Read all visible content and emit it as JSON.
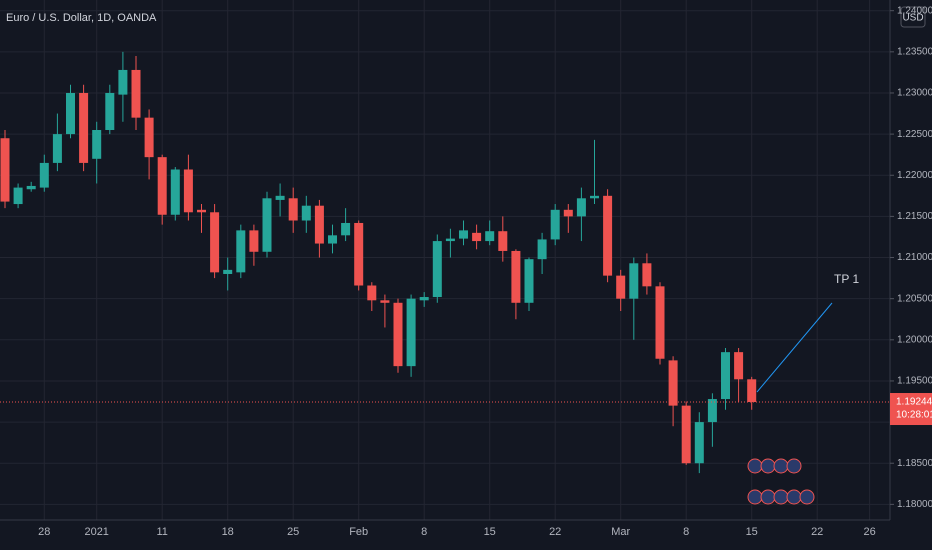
{
  "chart_data": {
    "type": "candlestick",
    "title": "Euro / U.S. Dollar, 1D, OANDA",
    "currency": "USD",
    "categories": [
      null,
      null,
      null,
      "28",
      null,
      null,
      null,
      "2021",
      null,
      null,
      null,
      null,
      "11",
      null,
      null,
      null,
      null,
      "18",
      null,
      null,
      null,
      null,
      "25",
      null,
      null,
      null,
      null,
      "Feb",
      null,
      null,
      null,
      null,
      "8",
      null,
      null,
      null,
      null,
      "15",
      null,
      null,
      null,
      null,
      "22",
      null,
      null,
      null,
      null,
      "Mar",
      null,
      null,
      null,
      null,
      "8",
      null,
      null,
      null,
      null,
      "15",
      null,
      null,
      null,
      null,
      "22",
      null,
      null,
      null,
      "26",
      null
    ],
    "open": [
      1.2245,
      1.2165,
      1.2183,
      1.2185,
      1.2215,
      1.225,
      1.23,
      1.222,
      1.2255,
      1.2298,
      1.2328,
      1.227,
      1.2222,
      1.2152,
      1.2207,
      1.2158,
      1.2155,
      1.208,
      1.2082,
      1.2133,
      1.2107,
      1.217,
      1.2172,
      1.2145,
      1.2163,
      1.2117,
      1.2127,
      1.2142,
      1.2066,
      1.2048,
      1.2045,
      1.1968,
      1.2048,
      1.2052,
      1.212,
      1.2123,
      1.213,
      1.212,
      1.2132,
      1.2108,
      1.2045,
      1.2098,
      1.2122,
      1.2158,
      1.215,
      1.2172,
      1.2175,
      1.2078,
      1.205,
      1.2093,
      1.2065,
      1.1975,
      1.192,
      1.185,
      1.19,
      1.1928,
      1.1985,
      1.1952,
      null,
      null,
      null,
      null,
      null,
      null,
      null,
      null,
      null,
      null
    ],
    "high": [
      1.2255,
      1.219,
      1.2192,
      1.2225,
      1.2275,
      1.231,
      1.231,
      1.2265,
      1.231,
      1.235,
      1.2345,
      1.228,
      1.2225,
      1.221,
      1.2225,
      1.2165,
      1.2165,
      1.21,
      1.214,
      1.214,
      1.218,
      1.219,
      1.2185,
      1.2175,
      1.217,
      1.214,
      1.216,
      1.2145,
      1.207,
      1.2055,
      1.205,
      1.2055,
      1.2058,
      1.2128,
      1.2135,
      1.2145,
      1.214,
      1.2145,
      1.215,
      1.211,
      1.21,
      1.213,
      1.2165,
      1.2165,
      1.2185,
      1.2243,
      1.2183,
      1.2085,
      1.21,
      1.2105,
      1.207,
      1.198,
      1.1925,
      1.1912,
      1.1935,
      1.199,
      1.199,
      1.1955,
      null,
      null,
      null,
      null,
      null,
      null,
      null,
      null,
      null,
      null
    ],
    "low": [
      1.216,
      1.216,
      1.218,
      1.218,
      1.2205,
      1.2245,
      1.2205,
      1.219,
      1.225,
      1.2265,
      1.2255,
      1.2195,
      1.214,
      1.2145,
      1.2145,
      1.213,
      1.2075,
      1.206,
      1.2075,
      1.209,
      1.21,
      1.215,
      1.213,
      1.213,
      1.21,
      1.2105,
      1.212,
      1.206,
      1.2035,
      1.2015,
      1.196,
      1.1955,
      1.204,
      1.2045,
      1.21,
      1.2115,
      1.211,
      1.2115,
      1.2095,
      1.2025,
      1.2035,
      1.208,
      1.2115,
      1.213,
      1.212,
      1.2165,
      1.207,
      1.2035,
      1.2,
      1.2055,
      1.197,
      1.1895,
      1.1848,
      1.1838,
      1.187,
      1.1915,
      1.1925,
      1.1915,
      null,
      null,
      null,
      null,
      null,
      null,
      null,
      null,
      null,
      null
    ],
    "close": [
      1.2168,
      1.2185,
      1.2187,
      1.2215,
      1.225,
      1.23,
      1.2215,
      1.2255,
      1.23,
      1.2328,
      1.227,
      1.2222,
      1.2152,
      1.2207,
      1.2155,
      1.2155,
      1.2082,
      1.2085,
      1.2133,
      1.2107,
      1.2172,
      1.2175,
      1.2145,
      1.2163,
      1.2117,
      1.2127,
      1.2142,
      1.2066,
      1.2048,
      1.2045,
      1.1968,
      1.205,
      1.2052,
      1.212,
      1.2123,
      1.2133,
      1.212,
      1.2132,
      1.2108,
      1.2045,
      1.2098,
      1.2122,
      1.2158,
      1.215,
      1.2172,
      1.2175,
      1.2078,
      1.205,
      1.2093,
      1.2065,
      1.1977,
      1.192,
      1.185,
      1.19,
      1.1928,
      1.1985,
      1.1952,
      1.19244,
      null,
      null,
      null,
      null,
      null,
      null,
      null,
      null,
      null,
      null
    ],
    "up_color": "#26a69a",
    "down_color": "#ef5350",
    "ylim": [
      1.1781,
      1.2413
    ],
    "yticks": [
      {
        "value": 1.18,
        "label": "1.18000"
      },
      {
        "value": 1.185,
        "label": "1.18500"
      },
      {
        "value": 1.19,
        "label": "1.19000"
      },
      {
        "value": 1.195,
        "label": "1.19500"
      },
      {
        "value": 1.2,
        "label": "1.20000"
      },
      {
        "value": 1.205,
        "label": "1.20500"
      },
      {
        "value": 1.21,
        "label": "1.21000"
      },
      {
        "value": 1.215,
        "label": "1.21500"
      },
      {
        "value": 1.22,
        "label": "1.22000"
      },
      {
        "value": 1.225,
        "label": "1.22500"
      },
      {
        "value": 1.23,
        "label": "1.23000"
      },
      {
        "value": 1.235,
        "label": "1.23500"
      },
      {
        "value": 1.24,
        "label": "1.24000"
      }
    ],
    "grid": true,
    "last_price": 1.19244,
    "countdown": "10:28:01",
    "annotations": [
      {
        "text": "TP 1"
      }
    ]
  }
}
